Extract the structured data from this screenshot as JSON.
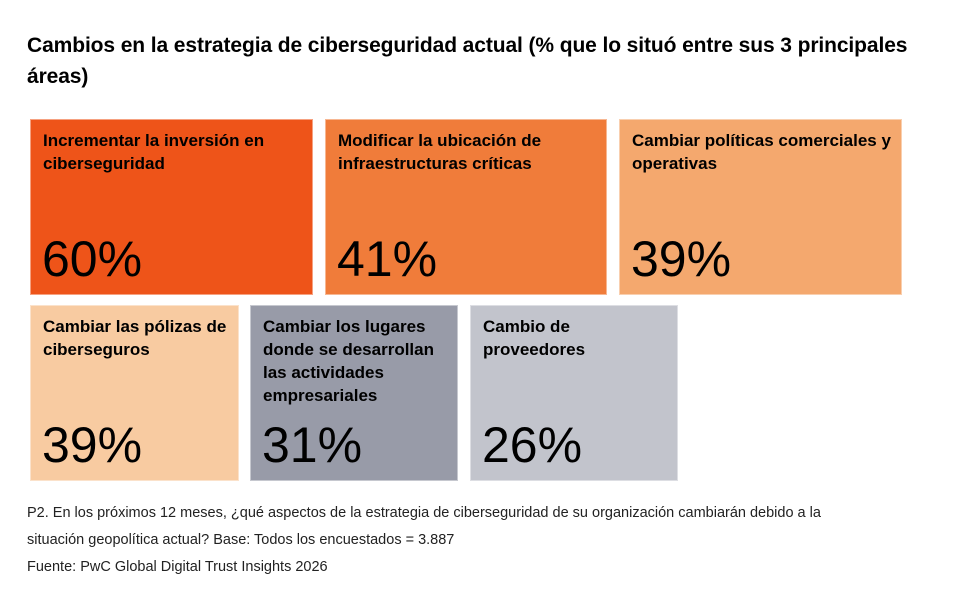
{
  "title": "Cambios en la estrategia de ciberseguridad actual (% que lo situó entre sus 3 principales áreas)",
  "chart_data": {
    "type": "table",
    "title": "Cambios en la estrategia de ciberseguridad actual (% que lo situó entre sus 3 principales áreas)",
    "unit": "%",
    "items": [
      {
        "label": "Incrementar la inversión en ciberseguridad",
        "value": 60,
        "value_label": "60%",
        "color": "#EE5419"
      },
      {
        "label": "Modificar la ubicación de infraestructuras críticas",
        "value": 41,
        "value_label": "41%",
        "color": "#F07C3A"
      },
      {
        "label": "Cambiar políticas comerciales y operativas",
        "value": 39,
        "value_label": "39%",
        "color": "#F4A86E"
      },
      {
        "label": "Cambiar las pólizas de ciberseguros",
        "value": 39,
        "value_label": "39%",
        "color": "#F8CBA1"
      },
      {
        "label": "Cambiar los lugares donde se desarrollan las actividades empresariales",
        "value": 31,
        "value_label": "31%",
        "color": "#989BA8"
      },
      {
        "label": "Cambio de proveedores",
        "value": 26,
        "value_label": "26%",
        "color": "#C2C4CC"
      }
    ]
  },
  "footer": {
    "question_line1": "P2. En los próximos 12 meses, ¿qué aspectos de la estrategia de ciberseguridad de su organización cambiarán debido a la",
    "question_line2": "situación geopolítica actual? Base: Todos los encuestados = 3.887",
    "source": "Fuente: PwC Global Digital Trust Insights 2026"
  }
}
